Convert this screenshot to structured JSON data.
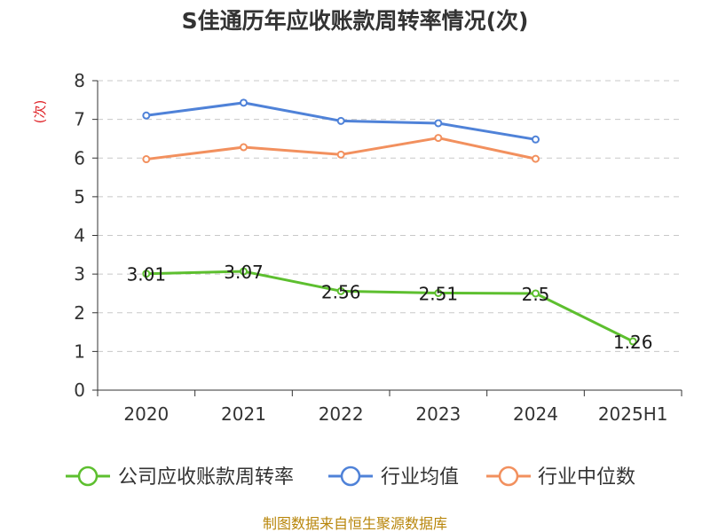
{
  "chart_data": {
    "type": "line",
    "title": "S佳通历年应收账款周转率情况(次)",
    "ylabel": "(次)",
    "xlabel": "",
    "ylim": [
      0,
      8
    ],
    "yticks": [
      "0",
      "1",
      "2",
      "3",
      "4",
      "5",
      "6",
      "7",
      "8"
    ],
    "categories": [
      "2020",
      "2021",
      "2022",
      "2023",
      "2024",
      "2025H1"
    ],
    "grid": true,
    "legend_position": "bottom",
    "series": [
      {
        "name": "公司应收账款周转率",
        "color": "#5dbf2f",
        "values": [
          3.01,
          3.07,
          2.56,
          2.51,
          2.5,
          1.26
        ],
        "labels": [
          "3.01",
          "3.07",
          "2.56",
          "2.51",
          "2.5",
          "1.26"
        ]
      },
      {
        "name": "行业均值",
        "color": "#4f82d8",
        "values": [
          7.1,
          7.43,
          6.96,
          6.9,
          6.48,
          null
        ]
      },
      {
        "name": "行业中位数",
        "color": "#f2905e",
        "values": [
          5.97,
          6.28,
          6.09,
          6.52,
          5.98,
          null
        ]
      }
    ]
  },
  "source": "制图数据来自恒生聚源数据库"
}
